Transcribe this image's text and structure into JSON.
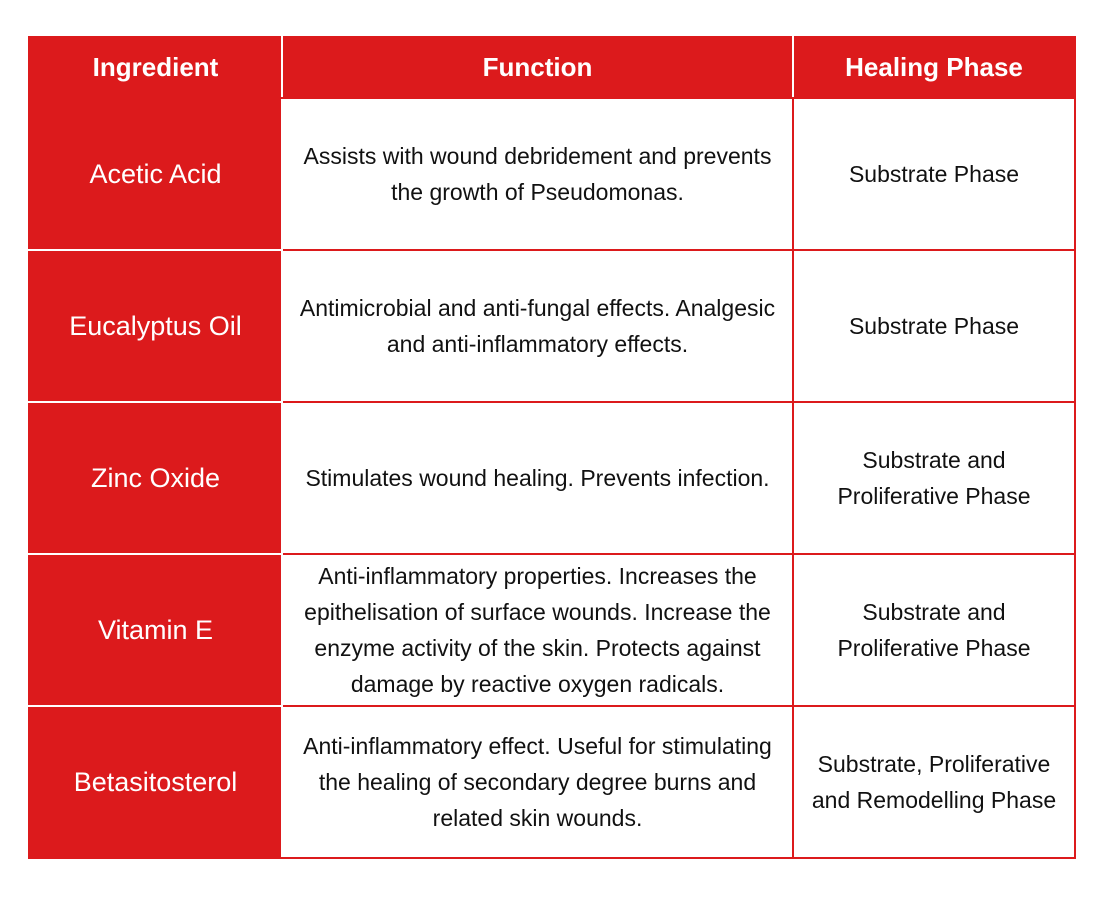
{
  "table": {
    "headers": {
      "ingredient": "Ingredient",
      "function": "Function",
      "phase": "Healing Phase"
    },
    "rows": [
      {
        "ingredient": "Acetic Acid",
        "function": "Assists with wound debridement and prevents the growth of Pseudomonas.",
        "phase": "Substrate Phase"
      },
      {
        "ingredient": "Eucalyptus Oil",
        "function": "Antimicrobial and anti-fungal effects. Analgesic and anti-inflammatory effects.",
        "phase": "Substrate Phase"
      },
      {
        "ingredient": "Zinc Oxide",
        "function": "Stimulates wound healing. Prevents infection.",
        "phase": "Substrate and Proliferative Phase"
      },
      {
        "ingredient": "Vitamin E",
        "function": "Anti-inflammatory properties. Increases the epithelisation of surface wounds. Increase the enzyme activity of the skin. Protects against damage by reactive oxygen radicals.",
        "phase": "Substrate and Proliferative Phase"
      },
      {
        "ingredient": "Betasitosterol",
        "function": "Anti-inflammatory effect. Useful for stimulating the healing of secondary degree burns and related skin wounds.",
        "phase": "Substrate, Proliferative and Remodelling Phase"
      }
    ]
  }
}
